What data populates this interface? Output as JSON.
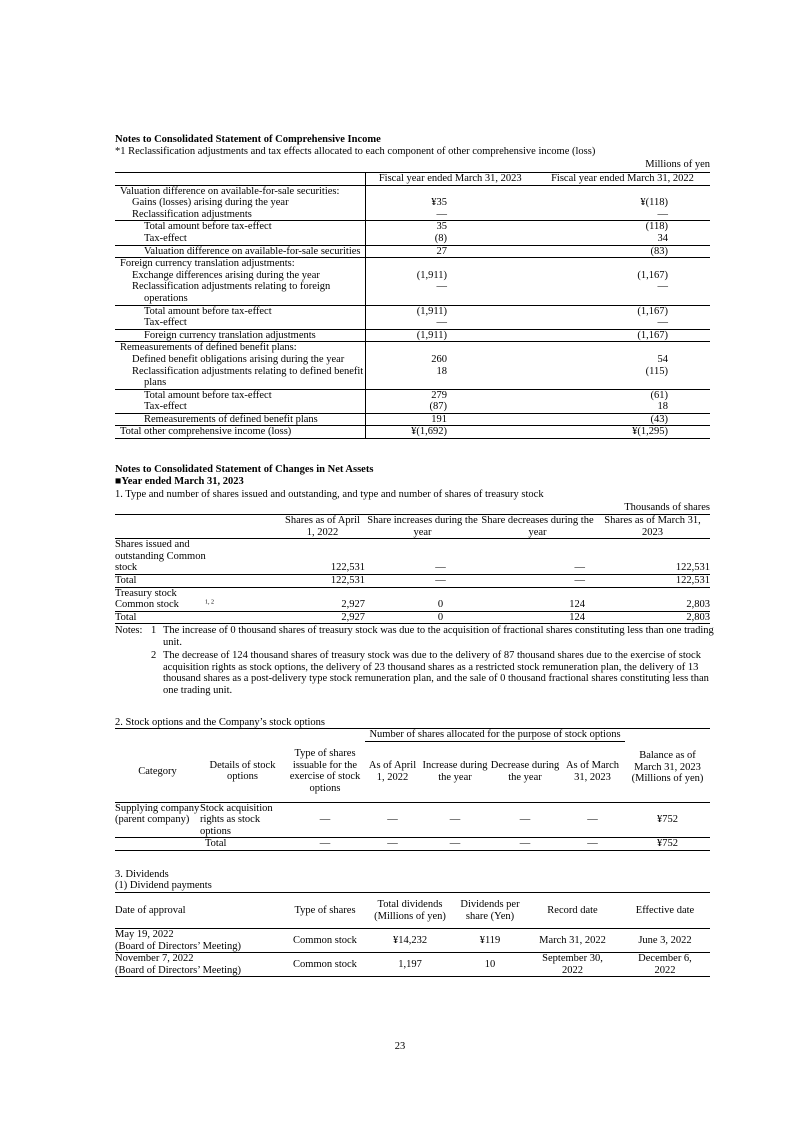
{
  "comprehensive_income": {
    "heading": "Notes to Consolidated Statement of Comprehensive Income",
    "subheading": "*1 Reclassification adjustments and tax effects allocated to each component of other comprehensive income (loss)",
    "unit": "Millions of yen",
    "columns": [
      "",
      "Fiscal year ended March 31, 2023",
      "Fiscal year ended March 31, 2022"
    ],
    "blocks": [
      {
        "rows": [
          {
            "label": "Valuation difference on available-for-sale securities:",
            "indent": 0,
            "v2023": "",
            "v2022": ""
          },
          {
            "label": "Gains (losses) arising during the year",
            "indent": 1,
            "v2023": "¥35",
            "v2022": "¥(118)"
          },
          {
            "label": "Reclassification adjustments",
            "indent": 1,
            "v2023": "—",
            "v2022": "—"
          }
        ]
      },
      {
        "rows": [
          {
            "label": "Total amount before tax-effect",
            "indent": 2,
            "v2023": "35",
            "v2022": "(118)"
          },
          {
            "label": "Tax-effect",
            "indent": 2,
            "v2023": "(8)",
            "v2022": "34"
          }
        ]
      },
      {
        "rows": [
          {
            "label": "Valuation difference on available-for-sale securities",
            "indent": 2,
            "v2023": "27",
            "v2022": "(83)"
          }
        ]
      },
      {
        "rows": [
          {
            "label": "Foreign currency translation adjustments:",
            "indent": 0,
            "v2023": "",
            "v2022": ""
          },
          {
            "label": "Exchange differences arising during the year",
            "indent": 1,
            "v2023": "(1,911)",
            "v2022": "(1,167)"
          },
          {
            "label": "Reclassification adjustments relating to foreign operations",
            "indent": 1,
            "v2023": "—",
            "v2022": "—"
          }
        ]
      },
      {
        "rows": [
          {
            "label": "Total amount before tax-effect",
            "indent": 2,
            "v2023": "(1,911)",
            "v2022": "(1,167)"
          },
          {
            "label": "Tax-effect",
            "indent": 2,
            "v2023": "—",
            "v2022": "—"
          }
        ]
      },
      {
        "rows": [
          {
            "label": "Foreign currency translation adjustments",
            "indent": 2,
            "v2023": "(1,911)",
            "v2022": "(1,167)"
          }
        ]
      },
      {
        "rows": [
          {
            "label": "Remeasurements of defined benefit plans:",
            "indent": 0,
            "v2023": "",
            "v2022": ""
          },
          {
            "label": "Defined benefit obligations arising during the year",
            "indent": 1,
            "v2023": "260",
            "v2022": "54"
          },
          {
            "label": "Reclassification adjustments relating to defined benefit plans",
            "indent": 1,
            "v2023": "18",
            "v2022": "(115)"
          }
        ]
      },
      {
        "rows": [
          {
            "label": "Total amount before tax-effect",
            "indent": 2,
            "v2023": "279",
            "v2022": "(61)"
          },
          {
            "label": "Tax-effect",
            "indent": 2,
            "v2023": "(87)",
            "v2022": "18"
          }
        ]
      },
      {
        "rows": [
          {
            "label": "Remeasurements of defined benefit plans",
            "indent": 2,
            "v2023": "191",
            "v2022": "(43)"
          }
        ]
      },
      {
        "rows": [
          {
            "label": "Total other comprehensive income (loss)",
            "indent": 0,
            "v2023": "¥(1,692)",
            "v2022": "¥(1,295)"
          }
        ]
      }
    ]
  },
  "net_assets": {
    "heading": "Notes to Consolidated Statement of Changes in Net Assets",
    "year_marker": "■",
    "year_heading": "Year ended March 31, 2023",
    "shares": {
      "title": "1. Type and number of shares issued and outstanding, and type and number of shares of treasury stock",
      "unit": "Thousands of shares",
      "columns": [
        "",
        "Shares as of April  1,  2022",
        "Share increases during the year",
        "Share decreases during the year",
        "Shares as of March  31,  2023"
      ],
      "rows": [
        {
          "label": "Shares issued and outstanding Common stock",
          "sup": "",
          "values": [
            "122,531",
            "—",
            "—",
            "122,531"
          ]
        },
        {
          "label": "Total",
          "sup": "",
          "values": [
            "122,531",
            "—",
            "—",
            "122,531"
          ]
        },
        {
          "label": "Treasury stock Common stock",
          "sup": "1, 2",
          "values": [
            "2,927",
            "0",
            "124",
            "2,803"
          ]
        },
        {
          "label": "Total",
          "sup": "",
          "values": [
            "2,927",
            "0",
            "124",
            "2,803"
          ]
        }
      ],
      "notes_label": "Notes:",
      "notes": [
        {
          "num": "1",
          "text": "The increase of 0 thousand shares of treasury stock was due to the acquisition of fractional shares constituting less than one trading unit."
        },
        {
          "num": "2",
          "text": "The decrease of 124 thousand shares of treasury stock was due to the delivery of 87 thousand shares due to the exercise of stock acquisition rights as stock options, the delivery of 23 thousand shares as a restricted stock remuneration plan, the delivery of 13 thousand shares as a post-delivery type stock remuneration plan, and the sale of 0 thousand fractional shares constituting less than one trading unit."
        }
      ]
    },
    "stock_options": {
      "title": "2. Stock options and the Company’s stock options",
      "group_header": "Number of shares allocated for the purpose of stock options",
      "columns": [
        "Category",
        "Details of stock options",
        "Type of shares issuable for the exercise of stock options",
        "As of April 1, 2022",
        "Increase during the year",
        "Decrease during the year",
        "As of March 31, 2023",
        "Balance as of March 31, 2023 (Millions of yen)"
      ],
      "rows": [
        {
          "category": "Supplying company (parent company)",
          "details": "Stock acquisition rights as stock options",
          "values": [
            "—",
            "—",
            "—",
            "—",
            "—",
            "¥752"
          ]
        }
      ],
      "total": {
        "label": "Total",
        "values": [
          "—",
          "—",
          "—",
          "—",
          "—",
          "¥752"
        ]
      }
    },
    "dividends": {
      "title": "3. Dividends",
      "subtitle": "(1) Dividend payments",
      "columns": [
        "Date of approval",
        "Type of shares",
        "Total dividends (Millions of yen)",
        "Dividends per share (Yen)",
        "Record date",
        "Effective date"
      ],
      "rows": [
        {
          "date": "May 19, 2022",
          "body": "(Board of Directors’ Meeting)",
          "type": "Common stock",
          "total": "¥14,232",
          "per_share": "¥119",
          "record": "March 31, 2022",
          "effective": "June 3, 2022"
        },
        {
          "date": "November 7, 2022",
          "body": "(Board of Directors’ Meeting)",
          "type": "Common stock",
          "total": "1,197",
          "per_share": "10",
          "record": "September 30, 2022",
          "effective": "December 6, 2022"
        }
      ]
    }
  },
  "page_number": "23"
}
